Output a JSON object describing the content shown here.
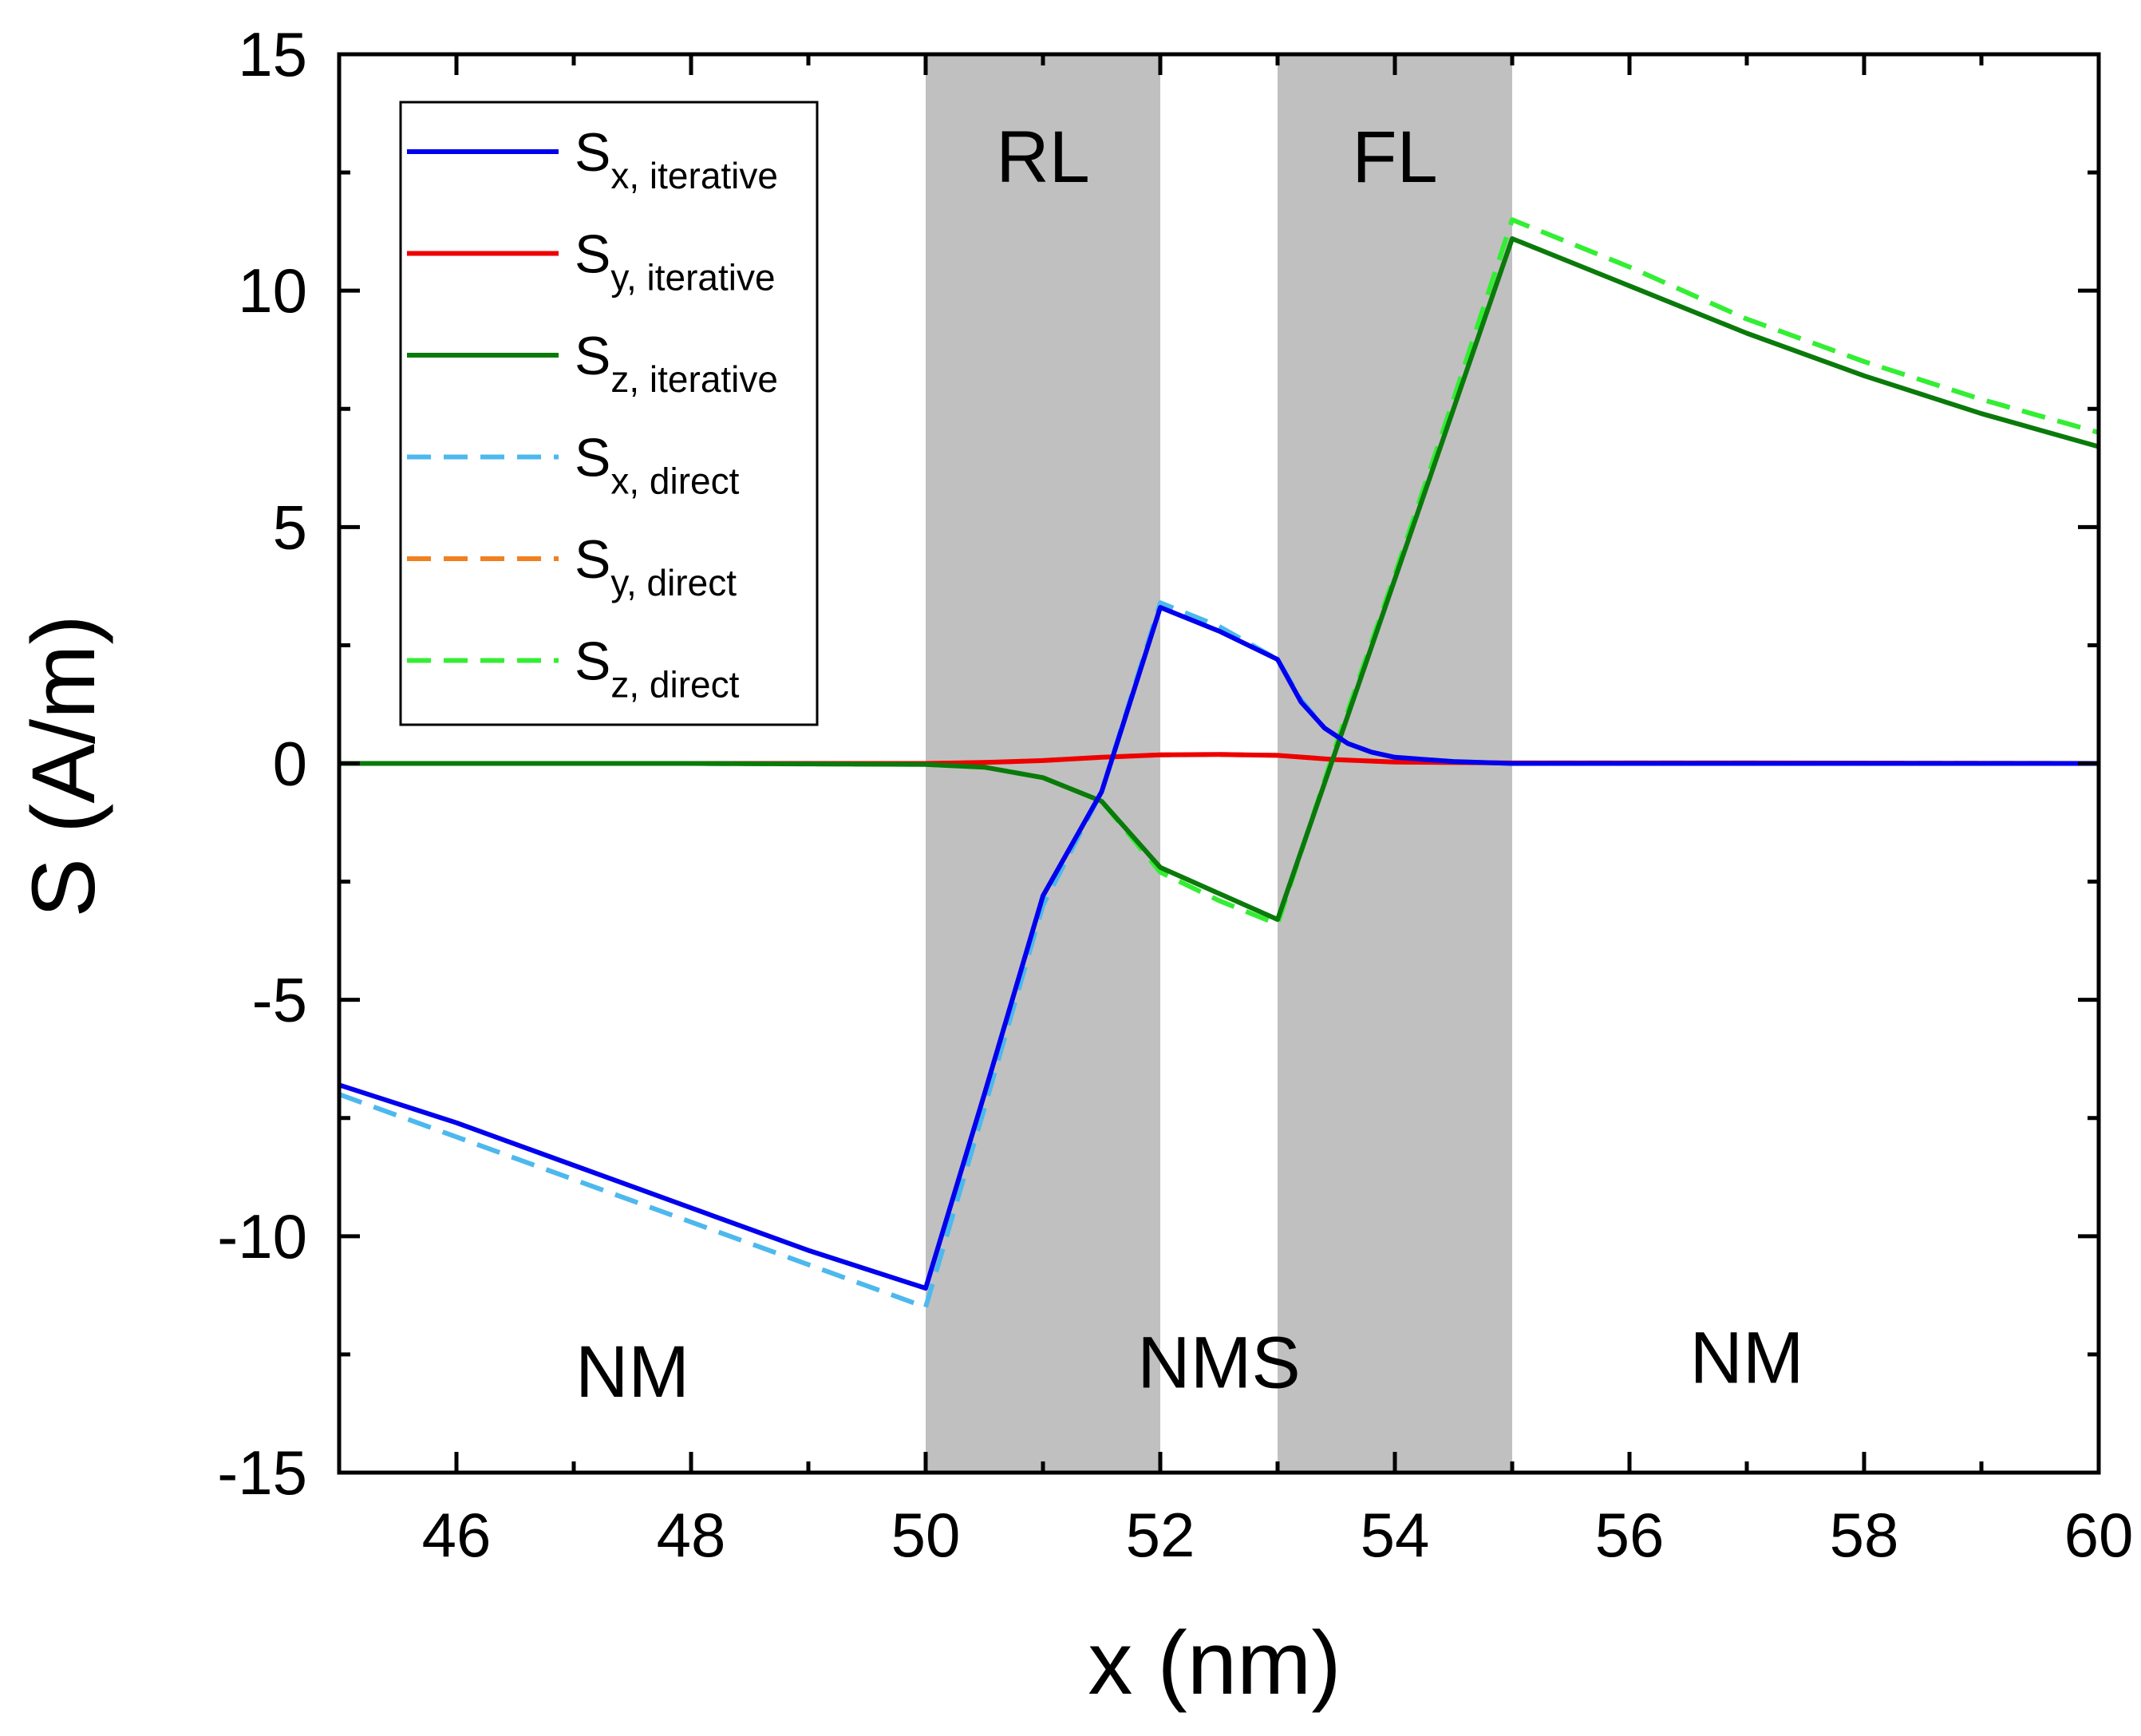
{
  "chart_data": {
    "type": "line",
    "xlabel": "x (nm)",
    "ylabel": "S (A/m)",
    "xlim": [
      45,
      60
    ],
    "ylim": [
      -15,
      15
    ],
    "xticks": [
      46,
      48,
      50,
      52,
      54,
      56,
      58,
      60
    ],
    "yticks": [
      -15,
      -10,
      -5,
      0,
      5,
      10,
      15
    ],
    "grid": false,
    "legend_position": "top-left",
    "shaded_regions": [
      {
        "label": "RL",
        "x_start": 50,
        "x_end": 52,
        "color": "#c0c0c0"
      },
      {
        "label": "FL",
        "x_start": 53,
        "x_end": 55,
        "color": "#c0c0c0"
      }
    ],
    "region_annotations": [
      {
        "text": "NM",
        "x": 47.5,
        "y": -13.4
      },
      {
        "text": "NMS",
        "x": 52.5,
        "y": -13.2
      },
      {
        "text": "NM",
        "x": 57.0,
        "y": -13.1
      }
    ],
    "series": [
      {
        "name": "S",
        "sub": "x, iterative",
        "color": "#0000ee",
        "dash": "solid",
        "points": [
          [
            45,
            -6.8
          ],
          [
            46,
            -7.6
          ],
          [
            47,
            -8.5
          ],
          [
            48,
            -9.4
          ],
          [
            49,
            -10.3
          ],
          [
            50,
            -11.1
          ],
          [
            50.5,
            -7.0
          ],
          [
            51,
            -2.8
          ],
          [
            51.5,
            -0.6
          ],
          [
            52,
            3.3
          ],
          [
            52.5,
            2.8
          ],
          [
            53,
            2.2
          ],
          [
            53.2,
            1.3
          ],
          [
            53.4,
            0.75
          ],
          [
            53.6,
            0.42
          ],
          [
            53.8,
            0.24
          ],
          [
            54,
            0.13
          ],
          [
            54.5,
            0.04
          ],
          [
            55,
            0.0
          ],
          [
            60,
            0.0
          ]
        ]
      },
      {
        "name": "S",
        "sub": "y, iterative",
        "color": "#ee0000",
        "dash": "solid",
        "points": [
          [
            45,
            0.0
          ],
          [
            50,
            0.0
          ],
          [
            50.5,
            0.02
          ],
          [
            51,
            0.06
          ],
          [
            51.5,
            0.13
          ],
          [
            52,
            0.18
          ],
          [
            52.5,
            0.19
          ],
          [
            53,
            0.17
          ],
          [
            53.5,
            0.08
          ],
          [
            54,
            0.03
          ],
          [
            55,
            0.01
          ],
          [
            57,
            0.01
          ],
          [
            60,
            0.0
          ]
        ]
      },
      {
        "name": "S",
        "sub": "z, iterative",
        "color": "#0a7a0a",
        "dash": "solid",
        "points": [
          [
            45,
            0.0
          ],
          [
            48,
            0.0
          ],
          [
            50,
            -0.02
          ],
          [
            50.5,
            -0.08
          ],
          [
            51,
            -0.3
          ],
          [
            51.5,
            -0.8
          ],
          [
            52,
            -2.2
          ],
          [
            52.5,
            -2.75
          ],
          [
            53,
            -3.3
          ],
          [
            53.5,
            0.3
          ],
          [
            54,
            3.9
          ],
          [
            54.5,
            7.5
          ],
          [
            55,
            11.1
          ],
          [
            56,
            10.1
          ],
          [
            57,
            9.1
          ],
          [
            58,
            8.2
          ],
          [
            59,
            7.4
          ],
          [
            60,
            6.7
          ]
        ]
      },
      {
        "name": "S",
        "sub": "x, direct",
        "color": "#4db8ee",
        "dash": "dashed",
        "points": [
          [
            45,
            -7.0
          ],
          [
            46,
            -7.9
          ],
          [
            47,
            -8.8
          ],
          [
            48,
            -9.7
          ],
          [
            49,
            -10.6
          ],
          [
            50,
            -11.5
          ],
          [
            50.5,
            -7.3
          ],
          [
            51,
            -3.0
          ],
          [
            51.5,
            -0.6
          ],
          [
            52,
            3.4
          ],
          [
            52.5,
            2.9
          ],
          [
            53,
            2.2
          ],
          [
            53.2,
            1.35
          ],
          [
            53.4,
            0.75
          ],
          [
            53.6,
            0.42
          ],
          [
            53.8,
            0.24
          ],
          [
            54,
            0.13
          ],
          [
            54.5,
            0.04
          ],
          [
            55,
            0.0
          ],
          [
            60,
            0.0
          ]
        ]
      },
      {
        "name": "S",
        "sub": "y, direct",
        "color": "#f08020",
        "dash": "dashed",
        "points": [
          [
            45,
            0.0
          ],
          [
            50,
            0.0
          ],
          [
            50.5,
            0.02
          ],
          [
            51,
            0.06
          ],
          [
            51.5,
            0.13
          ],
          [
            52,
            0.18
          ],
          [
            52.5,
            0.19
          ],
          [
            53,
            0.17
          ],
          [
            53.5,
            0.08
          ],
          [
            54,
            0.03
          ],
          [
            55,
            0.01
          ],
          [
            57,
            0.01
          ],
          [
            60,
            0.0
          ]
        ]
      },
      {
        "name": "S",
        "sub": "z, direct",
        "color": "#33ee33",
        "dash": "dashed",
        "points": [
          [
            45,
            0.0
          ],
          [
            48,
            0.0
          ],
          [
            50,
            -0.02
          ],
          [
            50.5,
            -0.08
          ],
          [
            51,
            -0.3
          ],
          [
            51.5,
            -0.8
          ],
          [
            52,
            -2.3
          ],
          [
            52.5,
            -2.9
          ],
          [
            53,
            -3.4
          ],
          [
            53.5,
            0.4
          ],
          [
            54,
            4.0
          ],
          [
            54.5,
            7.7
          ],
          [
            55,
            11.5
          ],
          [
            56,
            10.5
          ],
          [
            57,
            9.4
          ],
          [
            58,
            8.5
          ],
          [
            59,
            7.7
          ],
          [
            60,
            7.0
          ]
        ]
      }
    ]
  }
}
